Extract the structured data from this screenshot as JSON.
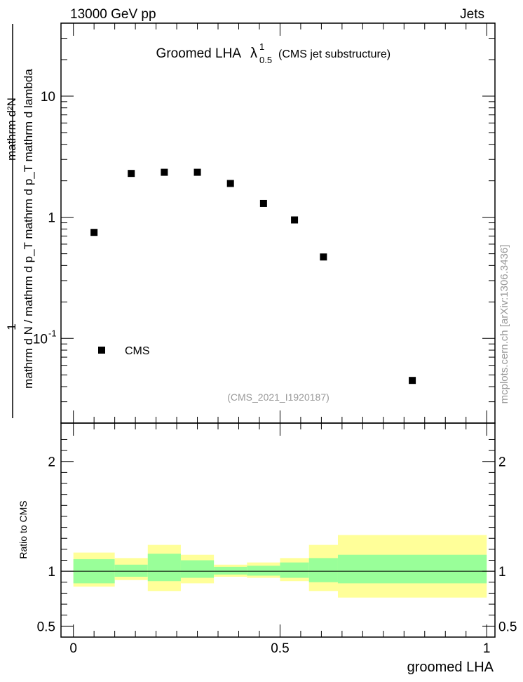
{
  "header": {
    "energy_label": "13000 GeV pp",
    "category_label": "Jets"
  },
  "watermark": "mcplots.cern.ch [arXiv:1306.3436]",
  "chart_data": [
    {
      "type": "scatter",
      "title": "Groomed LHA",
      "title_symbol": "λ",
      "title_sub": "0.5",
      "title_sup": "1",
      "title_suffix": "(CMS jet substructure)",
      "ylabel_numerator": "mathrm d²N",
      "ylabel_denominator": "mathrm d N / mathrm d p_T mathrm d p_T mathrm d lambda",
      "ylabel_prefix": "1",
      "yscale": "log",
      "ylim": [
        0.02,
        40
      ],
      "xlim": [
        -0.03,
        1.02
      ],
      "y_ticks": [
        {
          "value": 10,
          "label": "10"
        },
        {
          "value": 1,
          "label": "1"
        },
        {
          "value": 0.1,
          "label": "10^-1"
        }
      ],
      "series": [
        {
          "name": "CMS",
          "color": "#000000",
          "x": [
            0.05,
            0.14,
            0.22,
            0.3,
            0.38,
            0.46,
            0.535,
            0.605,
            0.82
          ],
          "values": [
            0.75,
            2.3,
            2.35,
            2.35,
            1.9,
            1.3,
            0.95,
            0.47,
            0.045
          ]
        }
      ],
      "legend": "lower-left",
      "analysis_id": "(CMS_2021_I1920187)"
    },
    {
      "type": "area",
      "ylabel": "Ratio to CMS",
      "xlabel": "groomed LHA",
      "ylim": [
        0.4,
        2.35
      ],
      "xlim": [
        -0.03,
        1.02
      ],
      "y_ticks": [
        {
          "value": 0.5,
          "label": "0.5"
        },
        {
          "value": 1,
          "label": "1"
        },
        {
          "value": 2,
          "label": "2"
        }
      ],
      "x_ticks": [
        {
          "value": 0,
          "label": "0"
        },
        {
          "value": 0.5,
          "label": "0.5"
        },
        {
          "value": 1,
          "label": "1"
        }
      ],
      "reference_line": 1,
      "bins": [
        {
          "lo": 0.0,
          "hi": 0.1,
          "stat_lo": 0.89,
          "stat_hi": 1.11,
          "tot_lo": 0.86,
          "tot_hi": 1.17
        },
        {
          "lo": 0.1,
          "hi": 0.18,
          "stat_lo": 0.95,
          "stat_hi": 1.06,
          "tot_lo": 0.92,
          "tot_hi": 1.12
        },
        {
          "lo": 0.18,
          "hi": 0.26,
          "stat_lo": 0.91,
          "stat_hi": 1.16,
          "tot_lo": 0.82,
          "tot_hi": 1.24
        },
        {
          "lo": 0.26,
          "hi": 0.34,
          "stat_lo": 0.94,
          "stat_hi": 1.1,
          "tot_lo": 0.89,
          "tot_hi": 1.15
        },
        {
          "lo": 0.34,
          "hi": 0.42,
          "stat_lo": 0.97,
          "stat_hi": 1.04,
          "tot_lo": 0.95,
          "tot_hi": 1.06
        },
        {
          "lo": 0.42,
          "hi": 0.5,
          "stat_lo": 0.96,
          "stat_hi": 1.05,
          "tot_lo": 0.94,
          "tot_hi": 1.08
        },
        {
          "lo": 0.5,
          "hi": 0.57,
          "stat_lo": 0.94,
          "stat_hi": 1.08,
          "tot_lo": 0.91,
          "tot_hi": 1.12
        },
        {
          "lo": 0.57,
          "hi": 0.64,
          "stat_lo": 0.9,
          "stat_hi": 1.12,
          "tot_lo": 0.82,
          "tot_hi": 1.24
        },
        {
          "lo": 0.64,
          "hi": 1.0,
          "stat_lo": 0.89,
          "stat_hi": 1.15,
          "tot_lo": 0.76,
          "tot_hi": 1.33
        }
      ],
      "colors": {
        "stat": "#99ff99",
        "total": "#ffff99"
      }
    }
  ]
}
